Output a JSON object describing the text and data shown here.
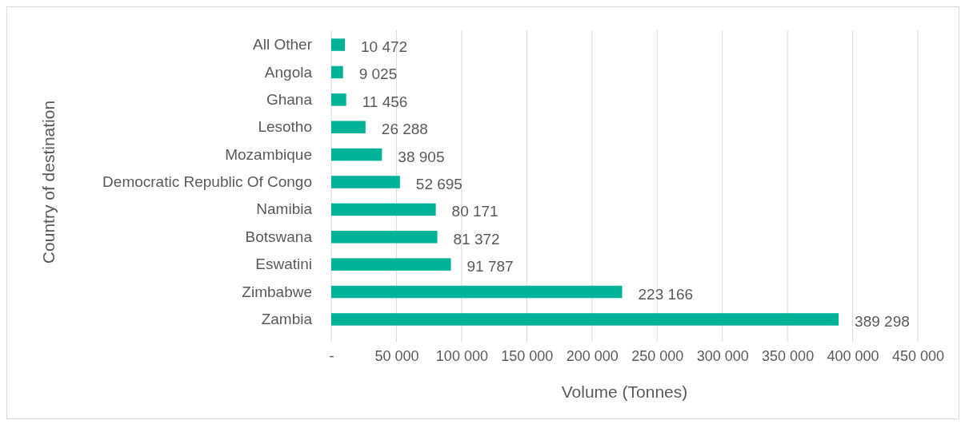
{
  "chart_data": {
    "type": "bar",
    "orientation": "horizontal",
    "xlabel": "Volume (Tonnes)",
    "ylabel": "Country of destination",
    "categories": [
      "All Other",
      "Angola",
      "Ghana",
      "Lesotho",
      "Mozambique",
      "Democratic Republic Of Congo",
      "Namibia",
      "Botswana",
      "Eswatini",
      "Zimbabwe",
      "Zambia"
    ],
    "values": [
      10472,
      9025,
      11456,
      26288,
      38905,
      52695,
      80171,
      81372,
      91787,
      223166,
      389298
    ],
    "value_labels": [
      "10 472",
      "9 025",
      "11 456",
      "26 288",
      "38 905",
      "52 695",
      "80 171",
      "81 372",
      "91 787",
      "223 166",
      "389 298"
    ],
    "color": "#00b398",
    "xlim": [
      0,
      450000
    ],
    "xticks": [
      {
        "value": 0,
        "label": "-"
      },
      {
        "value": 50000,
        "label": "50 000"
      },
      {
        "value": 100000,
        "label": "100 000"
      },
      {
        "value": 150000,
        "label": "150 000"
      },
      {
        "value": 200000,
        "label": "200 000"
      },
      {
        "value": 250000,
        "label": "250 000"
      },
      {
        "value": 300000,
        "label": "300 000"
      },
      {
        "value": 350000,
        "label": "350 000"
      },
      {
        "value": 400000,
        "label": "400 000"
      },
      {
        "value": 450000,
        "label": "450 000"
      }
    ],
    "grid": "x"
  }
}
